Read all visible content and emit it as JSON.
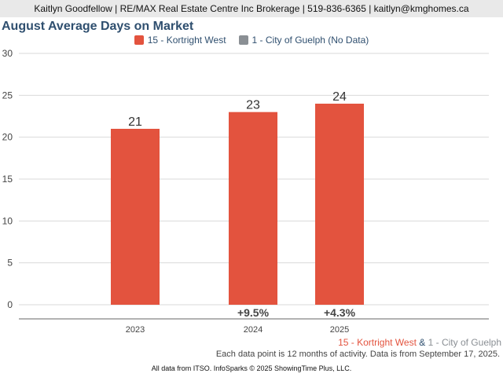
{
  "header": {
    "contact": "Kaitlyn Goodfellow | RE/MAX Real Estate Centre Inc Brokerage | 519-836-6365 | kaitlyn@kmghomes.ca"
  },
  "colors": {
    "primary": "#e3533e",
    "secondary": "#8a8f94",
    "title": "#2f4f6f"
  },
  "chart_data": {
    "type": "bar",
    "title": "August Average Days on Market",
    "categories": [
      "2023",
      "2024",
      "2025"
    ],
    "series": [
      {
        "name": "15 - Kortright West",
        "values": [
          21,
          23,
          24
        ]
      },
      {
        "name": "1 - City of Guelph (No Data)",
        "values": [
          null,
          null,
          null
        ]
      }
    ],
    "data_labels": [
      "21",
      "23",
      "24"
    ],
    "change_labels": [
      "",
      "+9.5%",
      "+4.3%"
    ],
    "yticks": [
      0,
      5,
      10,
      15,
      20,
      25,
      30
    ],
    "ylim": [
      0,
      30
    ],
    "grid": true,
    "legend": "top-center"
  },
  "comparison": {
    "primary": "15 - Kortright West",
    "joiner": "&",
    "secondary": "1 - City of Guelph"
  },
  "note": "Each data point is 12 months of activity. Data is from September 17, 2025.",
  "footer": "All data from ITSO. InfoSparks © 2025 ShowingTime Plus, LLC."
}
